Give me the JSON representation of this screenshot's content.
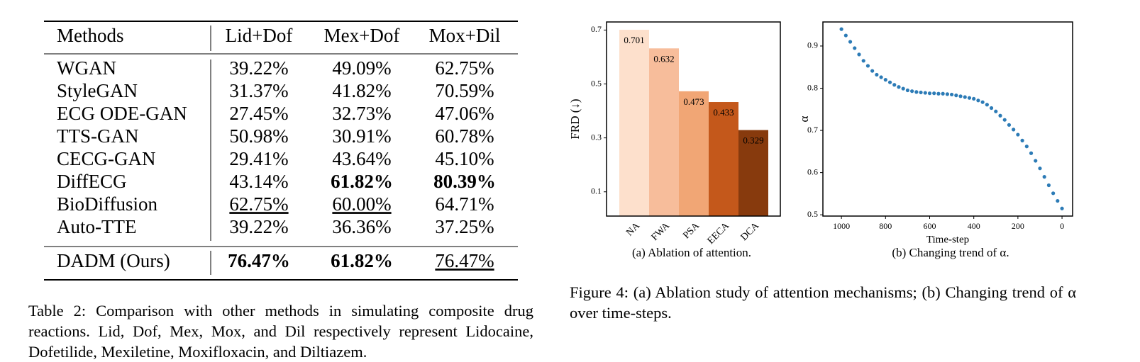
{
  "table": {
    "header": [
      "Methods",
      "Lid+Dof",
      "Mex+Dof",
      "Mox+Dil"
    ],
    "rows": [
      [
        {
          "text": "WGAN"
        },
        {
          "text": "39.22%"
        },
        {
          "text": "49.09%"
        },
        {
          "text": "62.75%"
        }
      ],
      [
        {
          "text": "StyleGAN"
        },
        {
          "text": "31.37%"
        },
        {
          "text": "41.82%"
        },
        {
          "text": "70.59%"
        }
      ],
      [
        {
          "text": "ECG ODE-GAN"
        },
        {
          "text": "27.45%"
        },
        {
          "text": "32.73%"
        },
        {
          "text": "47.06%"
        }
      ],
      [
        {
          "text": "TTS-GAN"
        },
        {
          "text": "50.98%"
        },
        {
          "text": "30.91%"
        },
        {
          "text": "60.78%"
        }
      ],
      [
        {
          "text": "CECG-GAN"
        },
        {
          "text": "29.41%"
        },
        {
          "text": "43.64%"
        },
        {
          "text": "45.10%"
        }
      ],
      [
        {
          "text": "DiffECG"
        },
        {
          "text": "43.14%"
        },
        {
          "text": "61.82%",
          "bold": true
        },
        {
          "text": "80.39%",
          "bold": true
        }
      ],
      [
        {
          "text": "BioDiffusion"
        },
        {
          "text": "62.75%",
          "underline": true
        },
        {
          "text": "60.00%",
          "underline": true
        },
        {
          "text": "64.71%"
        }
      ],
      [
        {
          "text": "Auto-TTE"
        },
        {
          "text": "39.22%"
        },
        {
          "text": "36.36%"
        },
        {
          "text": "37.25%"
        }
      ],
      [
        {
          "text": "DADM (Ours)"
        },
        {
          "text": "76.47%",
          "bold": true
        },
        {
          "text": "61.82%",
          "bold": true
        },
        {
          "text": "76.47%",
          "underline": true
        }
      ]
    ],
    "caption": "Table 2: Comparison with other methods in simulating composite drug reactions. Lid, Dof, Mex, Mox, and Dil respectively represent Lidocaine, Dofetilide, Mexiletine, Moxifloxacin, and Diltiazem."
  },
  "chart_data": [
    {
      "type": "bar",
      "subtitle": "(a) Ablation of attention.",
      "ylabel": "FRD (↓)",
      "categories": [
        "NA",
        "FWA",
        "PSA",
        "EECA",
        "DCA"
      ],
      "values": [
        0.701,
        0.632,
        0.473,
        0.433,
        0.329
      ],
      "colors": [
        "#fde0cc",
        "#f7bd9b",
        "#f1a675",
        "#c4581b",
        "#873a0d"
      ],
      "ylim": [
        0.01,
        0.73
      ],
      "yticks": [
        0.1,
        0.3,
        0.5,
        0.7
      ],
      "grid": false
    },
    {
      "type": "scatter",
      "subtitle": "(b) Changing trend of α.",
      "xlabel": "Time-step",
      "ylabel": "α",
      "color": "#2c7bb6",
      "x": [
        1000,
        980,
        960,
        940,
        920,
        900,
        880,
        860,
        840,
        820,
        800,
        780,
        760,
        740,
        720,
        700,
        680,
        660,
        640,
        620,
        600,
        580,
        560,
        540,
        520,
        500,
        480,
        460,
        440,
        420,
        400,
        380,
        360,
        340,
        320,
        300,
        280,
        260,
        240,
        220,
        200,
        180,
        160,
        140,
        120,
        100,
        80,
        60,
        40,
        20,
        0
      ],
      "values": [
        0.94,
        0.925,
        0.91,
        0.895,
        0.88,
        0.865,
        0.853,
        0.841,
        0.832,
        0.826,
        0.82,
        0.814,
        0.808,
        0.803,
        0.799,
        0.795,
        0.793,
        0.791,
        0.79,
        0.789,
        0.788,
        0.788,
        0.787,
        0.787,
        0.786,
        0.785,
        0.783,
        0.781,
        0.779,
        0.777,
        0.775,
        0.771,
        0.767,
        0.761,
        0.753,
        0.745,
        0.735,
        0.725,
        0.713,
        0.702,
        0.69,
        0.676,
        0.662,
        0.646,
        0.628,
        0.61,
        0.59,
        0.57,
        0.551,
        0.533,
        0.515
      ],
      "xlim": [
        1084,
        -48
      ],
      "xticks": [
        1000,
        800,
        600,
        400,
        200,
        0
      ],
      "ylim": [
        0.497,
        0.957
      ],
      "yticks": [
        0.5,
        0.6,
        0.7,
        0.8,
        0.9
      ],
      "grid": false
    }
  ],
  "figure_caption": "Figure 4: (a) Ablation study of attention mechanisms; (b) Changing trend of α over time-steps."
}
